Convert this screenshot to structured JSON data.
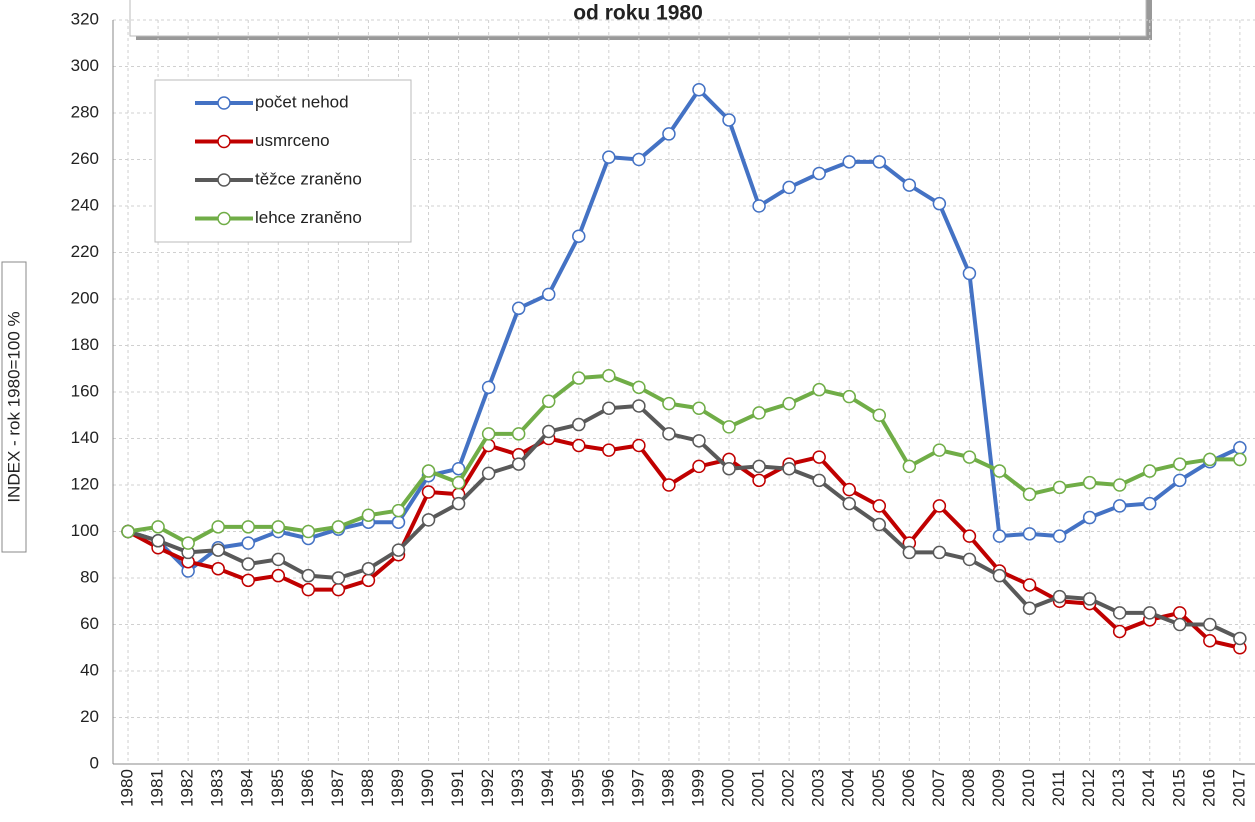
{
  "chart_data": {
    "type": "line",
    "title": "od roku 1980",
    "y_label": "INDEX - rok 1980=100 %",
    "categories": [
      "1980",
      "1981",
      "1982",
      "1983",
      "1984",
      "1985",
      "1986",
      "1987",
      "1988",
      "1989",
      "1990",
      "1991",
      "1992",
      "1993",
      "1994",
      "1995",
      "1996",
      "1997",
      "1998",
      "1999",
      "2000",
      "2001",
      "2002",
      "2003",
      "2004",
      "2005",
      "2006",
      "2007",
      "2008",
      "2009",
      "2010",
      "2011",
      "2012",
      "2013",
      "2014",
      "2015",
      "2016",
      "2017"
    ],
    "series": [
      {
        "name": "počet nehod",
        "color": "#4472c4",
        "values": [
          100,
          96,
          83,
          93,
          95,
          100,
          97,
          101,
          104,
          104,
          124,
          127,
          162,
          196,
          202,
          227,
          261,
          260,
          271,
          290,
          277,
          240,
          248,
          254,
          259,
          259,
          249,
          241,
          211,
          98,
          99,
          98,
          106,
          111,
          112,
          122,
          130,
          136
        ]
      },
      {
        "name": "usmrceno",
        "color": "#c00000",
        "values": [
          100,
          93,
          87,
          84,
          79,
          81,
          75,
          75,
          79,
          90,
          117,
          116,
          137,
          133,
          140,
          137,
          135,
          137,
          120,
          128,
          131,
          122,
          129,
          132,
          118,
          111,
          95,
          111,
          98,
          83,
          77,
          70,
          69,
          57,
          62,
          65,
          53,
          50
        ]
      },
      {
        "name": "těžce zraněno",
        "color": "#595959",
        "values": [
          100,
          96,
          91,
          92,
          86,
          88,
          81,
          80,
          84,
          92,
          105,
          112,
          125,
          129,
          143,
          146,
          153,
          154,
          142,
          139,
          127,
          128,
          127,
          122,
          112,
          103,
          91,
          91,
          88,
          81,
          67,
          72,
          71,
          65,
          65,
          60,
          60,
          54
        ]
      },
      {
        "name": "lehce zraněno",
        "color": "#70ad47",
        "values": [
          100,
          102,
          95,
          102,
          102,
          102,
          100,
          102,
          107,
          109,
          126,
          121,
          142,
          142,
          156,
          166,
          167,
          162,
          155,
          153,
          145,
          151,
          155,
          161,
          158,
          150,
          128,
          135,
          132,
          126,
          116,
          119,
          121,
          120,
          126,
          129,
          131,
          131
        ]
      }
    ],
    "ylim": [
      0,
      320
    ],
    "yticks": [
      0,
      20,
      40,
      60,
      80,
      100,
      120,
      140,
      160,
      180,
      200,
      220,
      240,
      260,
      280,
      300,
      320
    ],
    "grid": true,
    "legend": "upper left"
  }
}
